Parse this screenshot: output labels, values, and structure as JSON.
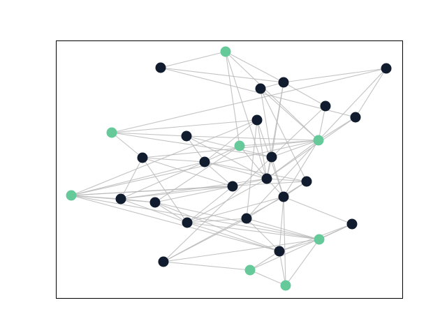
{
  "colors": {
    "background": "#ffffff",
    "frame": "#000000",
    "edge": "#b8b8b8",
    "node_dark": "#111d2e",
    "node_green": "#66c99a"
  },
  "graph": {
    "nodes": [
      {
        "id": 0,
        "group": "green"
      },
      {
        "id": 1,
        "group": "dark"
      },
      {
        "id": 2,
        "group": "dark"
      },
      {
        "id": 3,
        "group": "dark"
      },
      {
        "id": 4,
        "group": "dark"
      },
      {
        "id": 5,
        "group": "dark"
      },
      {
        "id": 6,
        "group": "dark"
      },
      {
        "id": 7,
        "group": "green"
      },
      {
        "id": 8,
        "group": "dark"
      },
      {
        "id": 9,
        "group": "green"
      },
      {
        "id": 10,
        "group": "green"
      },
      {
        "id": 11,
        "group": "dark"
      },
      {
        "id": 12,
        "group": "dark"
      },
      {
        "id": 13,
        "group": "dark"
      },
      {
        "id": 14,
        "group": "dark"
      },
      {
        "id": 15,
        "group": "dark"
      },
      {
        "id": 16,
        "group": "dark"
      },
      {
        "id": 17,
        "group": "dark"
      },
      {
        "id": 18,
        "group": "dark"
      },
      {
        "id": 19,
        "group": "dark"
      },
      {
        "id": 20,
        "group": "green"
      },
      {
        "id": 21,
        "group": "dark"
      },
      {
        "id": 22,
        "group": "dark"
      },
      {
        "id": 23,
        "group": "dark"
      },
      {
        "id": 24,
        "group": "dark"
      },
      {
        "id": 25,
        "group": "green"
      },
      {
        "id": 26,
        "group": "dark"
      },
      {
        "id": 27,
        "group": "dark"
      },
      {
        "id": 28,
        "group": "green"
      }
    ],
    "edges": [
      [
        0,
        1
      ],
      [
        0,
        4
      ],
      [
        0,
        9
      ],
      [
        0,
        10
      ],
      [
        0,
        16
      ],
      [
        1,
        6
      ],
      [
        1,
        4
      ],
      [
        2,
        4
      ],
      [
        2,
        6
      ],
      [
        2,
        7
      ],
      [
        2,
        10
      ],
      [
        3,
        4
      ],
      [
        3,
        14
      ],
      [
        3,
        15
      ],
      [
        3,
        10
      ],
      [
        4,
        14
      ],
      [
        4,
        16
      ],
      [
        4,
        5
      ],
      [
        5,
        10
      ],
      [
        5,
        14
      ],
      [
        6,
        10
      ],
      [
        6,
        16
      ],
      [
        7,
        8
      ],
      [
        7,
        11
      ],
      [
        7,
        13
      ],
      [
        7,
        14
      ],
      [
        8,
        10
      ],
      [
        8,
        14
      ],
      [
        8,
        12
      ],
      [
        8,
        16
      ],
      [
        9,
        12
      ],
      [
        9,
        21
      ],
      [
        9,
        16
      ],
      [
        9,
        10
      ],
      [
        10,
        11
      ],
      [
        10,
        18
      ],
      [
        10,
        20
      ],
      [
        10,
        23
      ],
      [
        10,
        14
      ],
      [
        10,
        16
      ],
      [
        11,
        12
      ],
      [
        11,
        17
      ],
      [
        11,
        19
      ],
      [
        11,
        22
      ],
      [
        12,
        17
      ],
      [
        12,
        16
      ],
      [
        12,
        15
      ],
      [
        12,
        20
      ],
      [
        12,
        13
      ],
      [
        12,
        19
      ],
      [
        13,
        16
      ],
      [
        13,
        23
      ],
      [
        13,
        20
      ],
      [
        13,
        18
      ],
      [
        14,
        16
      ],
      [
        14,
        18
      ],
      [
        14,
        27
      ],
      [
        15,
        16
      ],
      [
        15,
        18
      ],
      [
        15,
        20
      ],
      [
        15,
        23
      ],
      [
        16,
        17
      ],
      [
        16,
        18
      ],
      [
        16,
        19
      ],
      [
        16,
        22
      ],
      [
        17,
        19
      ],
      [
        17,
        22
      ],
      [
        17,
        20
      ],
      [
        17,
        21
      ],
      [
        18,
        22
      ],
      [
        18,
        26
      ],
      [
        18,
        24
      ],
      [
        19,
        20
      ],
      [
        19,
        21
      ],
      [
        19,
        22
      ],
      [
        20,
        21
      ],
      [
        20,
        24
      ],
      [
        20,
        25
      ],
      [
        21,
        24
      ],
      [
        21,
        25
      ],
      [
        21,
        22
      ],
      [
        22,
        23
      ],
      [
        22,
        24
      ],
      [
        22,
        25
      ],
      [
        23,
        24
      ],
      [
        23,
        25
      ],
      [
        23,
        27
      ],
      [
        24,
        25
      ],
      [
        24,
        28
      ],
      [
        24,
        26
      ],
      [
        25,
        26
      ],
      [
        25,
        27
      ],
      [
        26,
        28
      ],
      [
        27,
        28
      ],
      [
        27,
        18
      ]
    ]
  }
}
